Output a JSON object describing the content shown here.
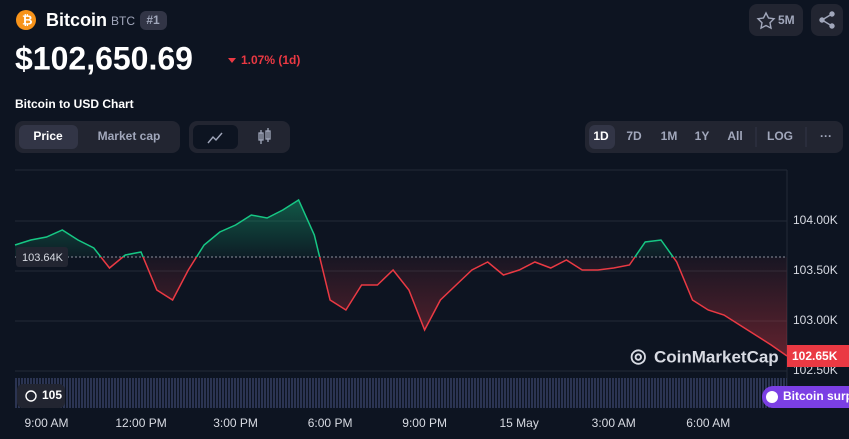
{
  "header": {
    "name": "Bitcoin",
    "symbol": "BTC",
    "rank": "#1",
    "watchlist": "5M",
    "price": "$102,650.69",
    "change": "1.07% (1d)",
    "chart_title": "Bitcoin to USD Chart"
  },
  "tabs": [
    "Price",
    "Market cap"
  ],
  "ranges": [
    "1D",
    "7D",
    "1M",
    "1Y",
    "All",
    "LOG"
  ],
  "more": "···",
  "badge": "105",
  "watermark": "CoinMarketCap",
  "news": "Bitcoin surpa",
  "chart_data": {
    "type": "line",
    "values": [
      103.76,
      103.81,
      103.84,
      103.91,
      103.81,
      103.73,
      103.53,
      103.66,
      103.69,
      103.31,
      103.21,
      103.51,
      103.76,
      103.89,
      103.96,
      104.06,
      104.03,
      104.11,
      104.21,
      103.86,
      103.21,
      103.11,
      103.36,
      103.36,
      103.51,
      103.31,
      102.91,
      103.21,
      103.36,
      103.51,
      103.59,
      103.46,
      103.51,
      103.59,
      103.53,
      103.61,
      103.51,
      103.51,
      103.53,
      103.56,
      103.79,
      103.81,
      103.59,
      103.21,
      103.11,
      103.06,
      102.96,
      102.86,
      102.76,
      102.65
    ],
    "xlim": [
      0,
      49
    ],
    "xticks": [
      {
        "value": 2,
        "label": "9:00 AM"
      },
      {
        "value": 8,
        "label": "12:00 PM"
      },
      {
        "value": 14,
        "label": "3:00 PM"
      },
      {
        "value": 20,
        "label": "6:00 PM"
      },
      {
        "value": 26,
        "label": "9:00 PM"
      },
      {
        "value": 32,
        "label": "15 May"
      },
      {
        "value": 38,
        "label": "3:00 AM"
      },
      {
        "value": 44,
        "label": "6:00 AM"
      }
    ],
    "ylim": [
      102.43,
      104.51
    ],
    "yticks": [
      {
        "value": 102.5,
        "label": "102.50K"
      },
      {
        "value": 103,
        "label": "103.00K"
      },
      {
        "value": 103.5,
        "label": "103.50K"
      },
      {
        "value": 104,
        "label": "104.00K"
      }
    ],
    "baseline": {
      "value": 103.64,
      "label": "103.64K"
    },
    "last_price": {
      "value": 102.65,
      "label": "102.65K"
    },
    "up_color": "#16c784",
    "down_color": "#ea3943",
    "grid": true
  }
}
